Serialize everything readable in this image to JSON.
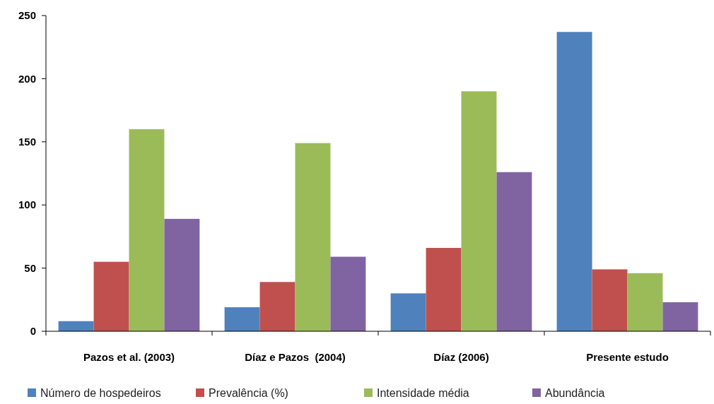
{
  "chart_data": {
    "type": "bar",
    "categories": [
      "Pazos et al. (2003)",
      "Díaz e Pazos  (2004)",
      "Díaz (2006)",
      "Presente estudo"
    ],
    "series": [
      {
        "name": "Número de hospedeiros",
        "color": "#4f81bd",
        "values": [
          8,
          19,
          30,
          237
        ]
      },
      {
        "name": "Prevalência (%)",
        "color": "#c0504d",
        "values": [
          55,
          39,
          66,
          49
        ]
      },
      {
        "name": "Intensidade média",
        "color": "#9bbb59",
        "values": [
          160,
          149,
          190,
          46
        ]
      },
      {
        "name": "Abundância",
        "color": "#8064a2",
        "values": [
          89,
          59,
          126,
          23
        ]
      }
    ],
    "ylim": [
      0,
      250
    ],
    "yticks": [
      0,
      50,
      100,
      150,
      200,
      250
    ],
    "grid": false,
    "legend": "bottom"
  }
}
